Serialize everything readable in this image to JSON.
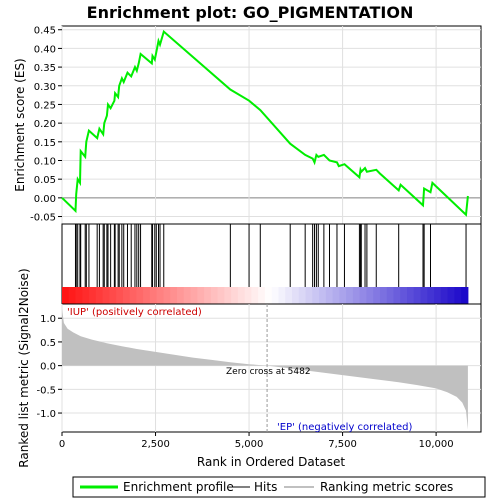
{
  "chart_data": {
    "type": "line",
    "title": "Enrichment plot: GO_PIGMENTATION",
    "top_panel": {
      "ylabel": "Enrichment score (ES)",
      "ylim": [
        -0.07,
        0.46
      ],
      "yticks": [
        -0.05,
        0.0,
        0.05,
        0.1,
        0.15,
        0.2,
        0.25,
        0.3,
        0.35,
        0.4,
        0.45
      ],
      "ytick_labels": [
        "-0.05",
        "0.00",
        "0.05",
        "0.10",
        "0.15",
        "0.20",
        "0.25",
        "0.30",
        "0.35",
        "0.40",
        "0.45"
      ],
      "series": [
        {
          "name": "Enrichment profile",
          "color": "#00ee00",
          "x": [
            0,
            360,
            380,
            420,
            480,
            500,
            620,
            650,
            720,
            940,
            1000,
            1100,
            1130,
            1200,
            1230,
            1300,
            1400,
            1420,
            1500,
            1530,
            1600,
            1650,
            1750,
            1850,
            1950,
            2000,
            2050,
            2100,
            2400,
            2420,
            2480,
            2520,
            2580,
            2620,
            2720,
            4500,
            5000,
            5300,
            6100,
            6500,
            6700,
            6750,
            6800,
            6850,
            7000,
            7150,
            7350,
            7400,
            7550,
            7950,
            7980,
            8000,
            8100,
            8150,
            8400,
            8500,
            9000,
            9050,
            9650,
            9680,
            9850,
            9900,
            10800,
            10850
          ],
          "y": [
            0.0,
            -0.035,
            0.01,
            0.05,
            0.04,
            0.125,
            0.11,
            0.15,
            0.18,
            0.16,
            0.185,
            0.17,
            0.2,
            0.22,
            0.25,
            0.24,
            0.26,
            0.28,
            0.27,
            0.3,
            0.32,
            0.31,
            0.335,
            0.325,
            0.35,
            0.34,
            0.36,
            0.385,
            0.36,
            0.38,
            0.37,
            0.39,
            0.42,
            0.41,
            0.445,
            0.29,
            0.26,
            0.235,
            0.145,
            0.115,
            0.105,
            0.095,
            0.115,
            0.11,
            0.115,
            0.1,
            0.095,
            0.085,
            0.09,
            0.055,
            0.075,
            0.07,
            0.08,
            0.07,
            0.075,
            0.065,
            0.02,
            0.035,
            -0.02,
            0.025,
            0.015,
            0.04,
            -0.045,
            0.005
          ]
        }
      ]
    },
    "hits_panel": {
      "name": "Hits",
      "hit_positions": [
        360,
        380,
        420,
        480,
        500,
        620,
        650,
        720,
        940,
        1000,
        1100,
        1130,
        1200,
        1230,
        1300,
        1400,
        1420,
        1500,
        1530,
        1600,
        1650,
        1750,
        1850,
        1950,
        2000,
        2050,
        2100,
        2400,
        2420,
        2480,
        2520,
        2580,
        2620,
        2720,
        4500,
        5000,
        5300,
        6100,
        6500,
        6700,
        6750,
        6800,
        6850,
        7000,
        7150,
        7350,
        7550,
        7950,
        7980,
        8000,
        8100,
        8150,
        8400,
        9000,
        9650,
        9680,
        9850,
        10800
      ]
    },
    "rank_panel": {
      "ylabel": "Ranked list metric (Signal2Noise)",
      "ylim": [
        -1.4,
        1.3
      ],
      "yticks": [
        -1.0,
        -0.5,
        0.0,
        0.5,
        1.0
      ],
      "ytick_labels": [
        "-1.0",
        "-0.5",
        "0.0",
        "0.5",
        "1.0"
      ],
      "xlabel": "Rank in Ordered Dataset",
      "xlim": [
        0,
        11200
      ],
      "xticks": [
        0,
        2500,
        5000,
        7500,
        10000
      ],
      "xtick_labels": [
        "0",
        "2,500",
        "5,000",
        "7,500",
        "10,000"
      ],
      "series_name": "Ranking metric scores",
      "metric_points": {
        "x": [
          0,
          50,
          150,
          300,
          500,
          800,
          1200,
          1600,
          2000,
          2500,
          3000,
          3500,
          4000,
          4500,
          5000,
          5482,
          6000,
          6500,
          7000,
          7500,
          8000,
          8500,
          9000,
          9500,
          10000,
          10300,
          10550,
          10700,
          10800,
          10850
        ],
        "y": [
          1.2,
          0.9,
          0.78,
          0.7,
          0.62,
          0.55,
          0.47,
          0.41,
          0.35,
          0.29,
          0.23,
          0.17,
          0.12,
          0.07,
          0.03,
          0.0,
          -0.05,
          -0.1,
          -0.15,
          -0.2,
          -0.25,
          -0.3,
          -0.35,
          -0.41,
          -0.48,
          -0.56,
          -0.66,
          -0.78,
          -0.95,
          -1.35
        ]
      },
      "zero_cross_rank": 5482,
      "zero_cross_label": "Zero cross at 5482",
      "pos_label": "'IUP' (positively correlated)",
      "neg_label": "'EP' (negatively correlated)",
      "pos_label_color": "#cc0000",
      "neg_label_color": "#0000cc"
    },
    "n_genes": 10850,
    "grid": true,
    "legend": {
      "placement": "bottom",
      "items": [
        {
          "label": "Enrichment profile",
          "color": "#00ee00"
        },
        {
          "label": "Hits",
          "color": "#000000"
        },
        {
          "label": "Ranking metric scores",
          "color": "#c0c0c0"
        }
      ]
    }
  }
}
